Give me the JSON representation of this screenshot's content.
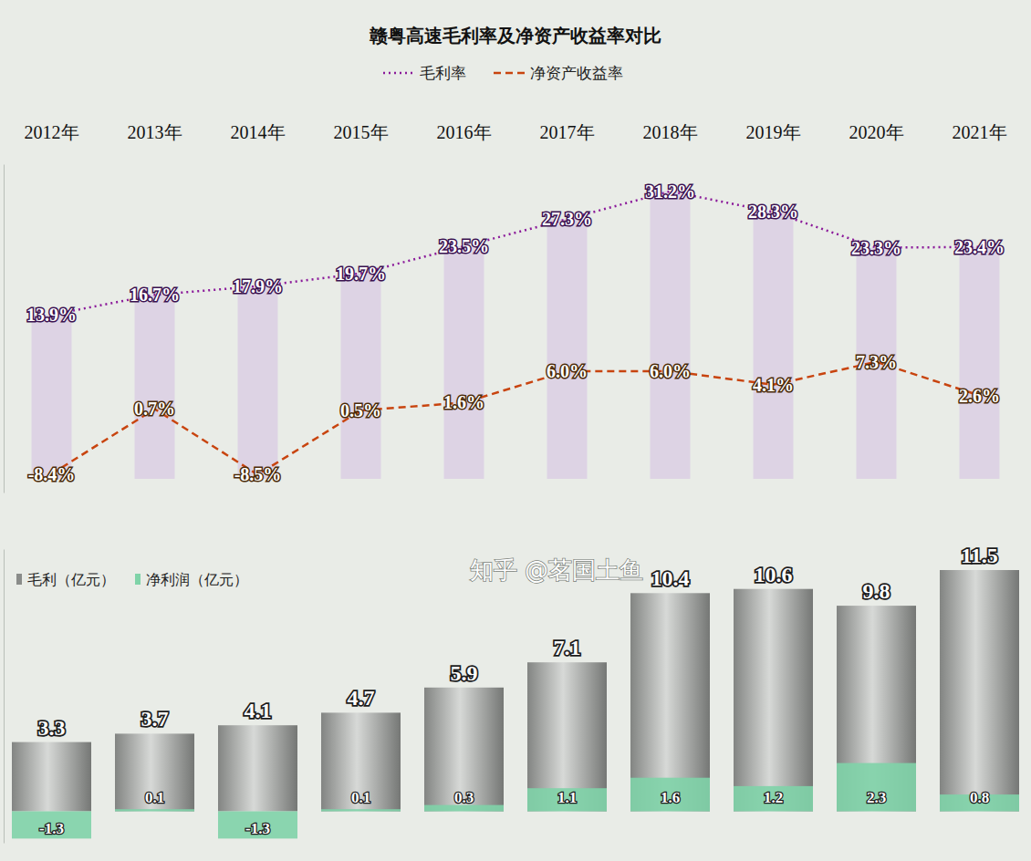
{
  "chart_data": [
    {
      "type": "line",
      "title": "赣粤高速毛利率及净资产收益率对比",
      "categories": [
        "2012年",
        "2013年",
        "2014年",
        "2015年",
        "2016年",
        "2017年",
        "2018年",
        "2019年",
        "2020年",
        "2021年"
      ],
      "series": [
        {
          "name": "毛利率",
          "color": "#8b1a9a",
          "line_style": "dotted",
          "values": [
            13.9,
            16.7,
            17.9,
            19.7,
            23.5,
            27.3,
            31.2,
            28.3,
            23.3,
            23.4
          ],
          "value_labels": [
            "13.9%",
            "16.7%",
            "17.9%",
            "19.7%",
            "23.5%",
            "27.3%",
            "31.2%",
            "28.3%",
            "23.3%",
            "23.4%"
          ]
        },
        {
          "name": "净资产收益率",
          "color": "#c8440f",
          "line_style": "dashed",
          "values": [
            -8.4,
            0.7,
            -8.5,
            0.5,
            1.6,
            6.0,
            6.0,
            4.1,
            7.3,
            2.6
          ],
          "value_labels": [
            "-8.4%",
            "0.7%",
            "-8.5%",
            "0.5%",
            "1.6%",
            "6.0%",
            "6.0%",
            "4.1%",
            "7.3%",
            "2.6%"
          ]
        }
      ],
      "ylim": [
        -11,
        35
      ],
      "yticks": [],
      "data_labels": true,
      "legend": "top"
    },
    {
      "type": "bar",
      "categories": [
        "2012年",
        "2013年",
        "2014年",
        "2015年",
        "2016年",
        "2017年",
        "2018年",
        "2019年",
        "2020年",
        "2021年"
      ],
      "series": [
        {
          "name": "毛利（亿元）",
          "color": "#9a9a9a",
          "values": [
            3.3,
            3.7,
            4.1,
            4.7,
            5.9,
            7.1,
            10.4,
            10.6,
            9.8,
            11.5
          ]
        },
        {
          "name": "净利润（亿元）",
          "color": "#7fd3a8",
          "values": [
            -1.3,
            0.1,
            -1.3,
            0.1,
            0.3,
            1.1,
            1.6,
            1.2,
            2.3,
            0.8
          ]
        }
      ],
      "ylim": [
        -1.5,
        12.5
      ],
      "yticks": [],
      "data_labels": true,
      "tick_labels": false,
      "stacked": false,
      "legend": "top-left",
      "annotations": [
        "知乎 @茗国土鱼"
      ]
    }
  ]
}
